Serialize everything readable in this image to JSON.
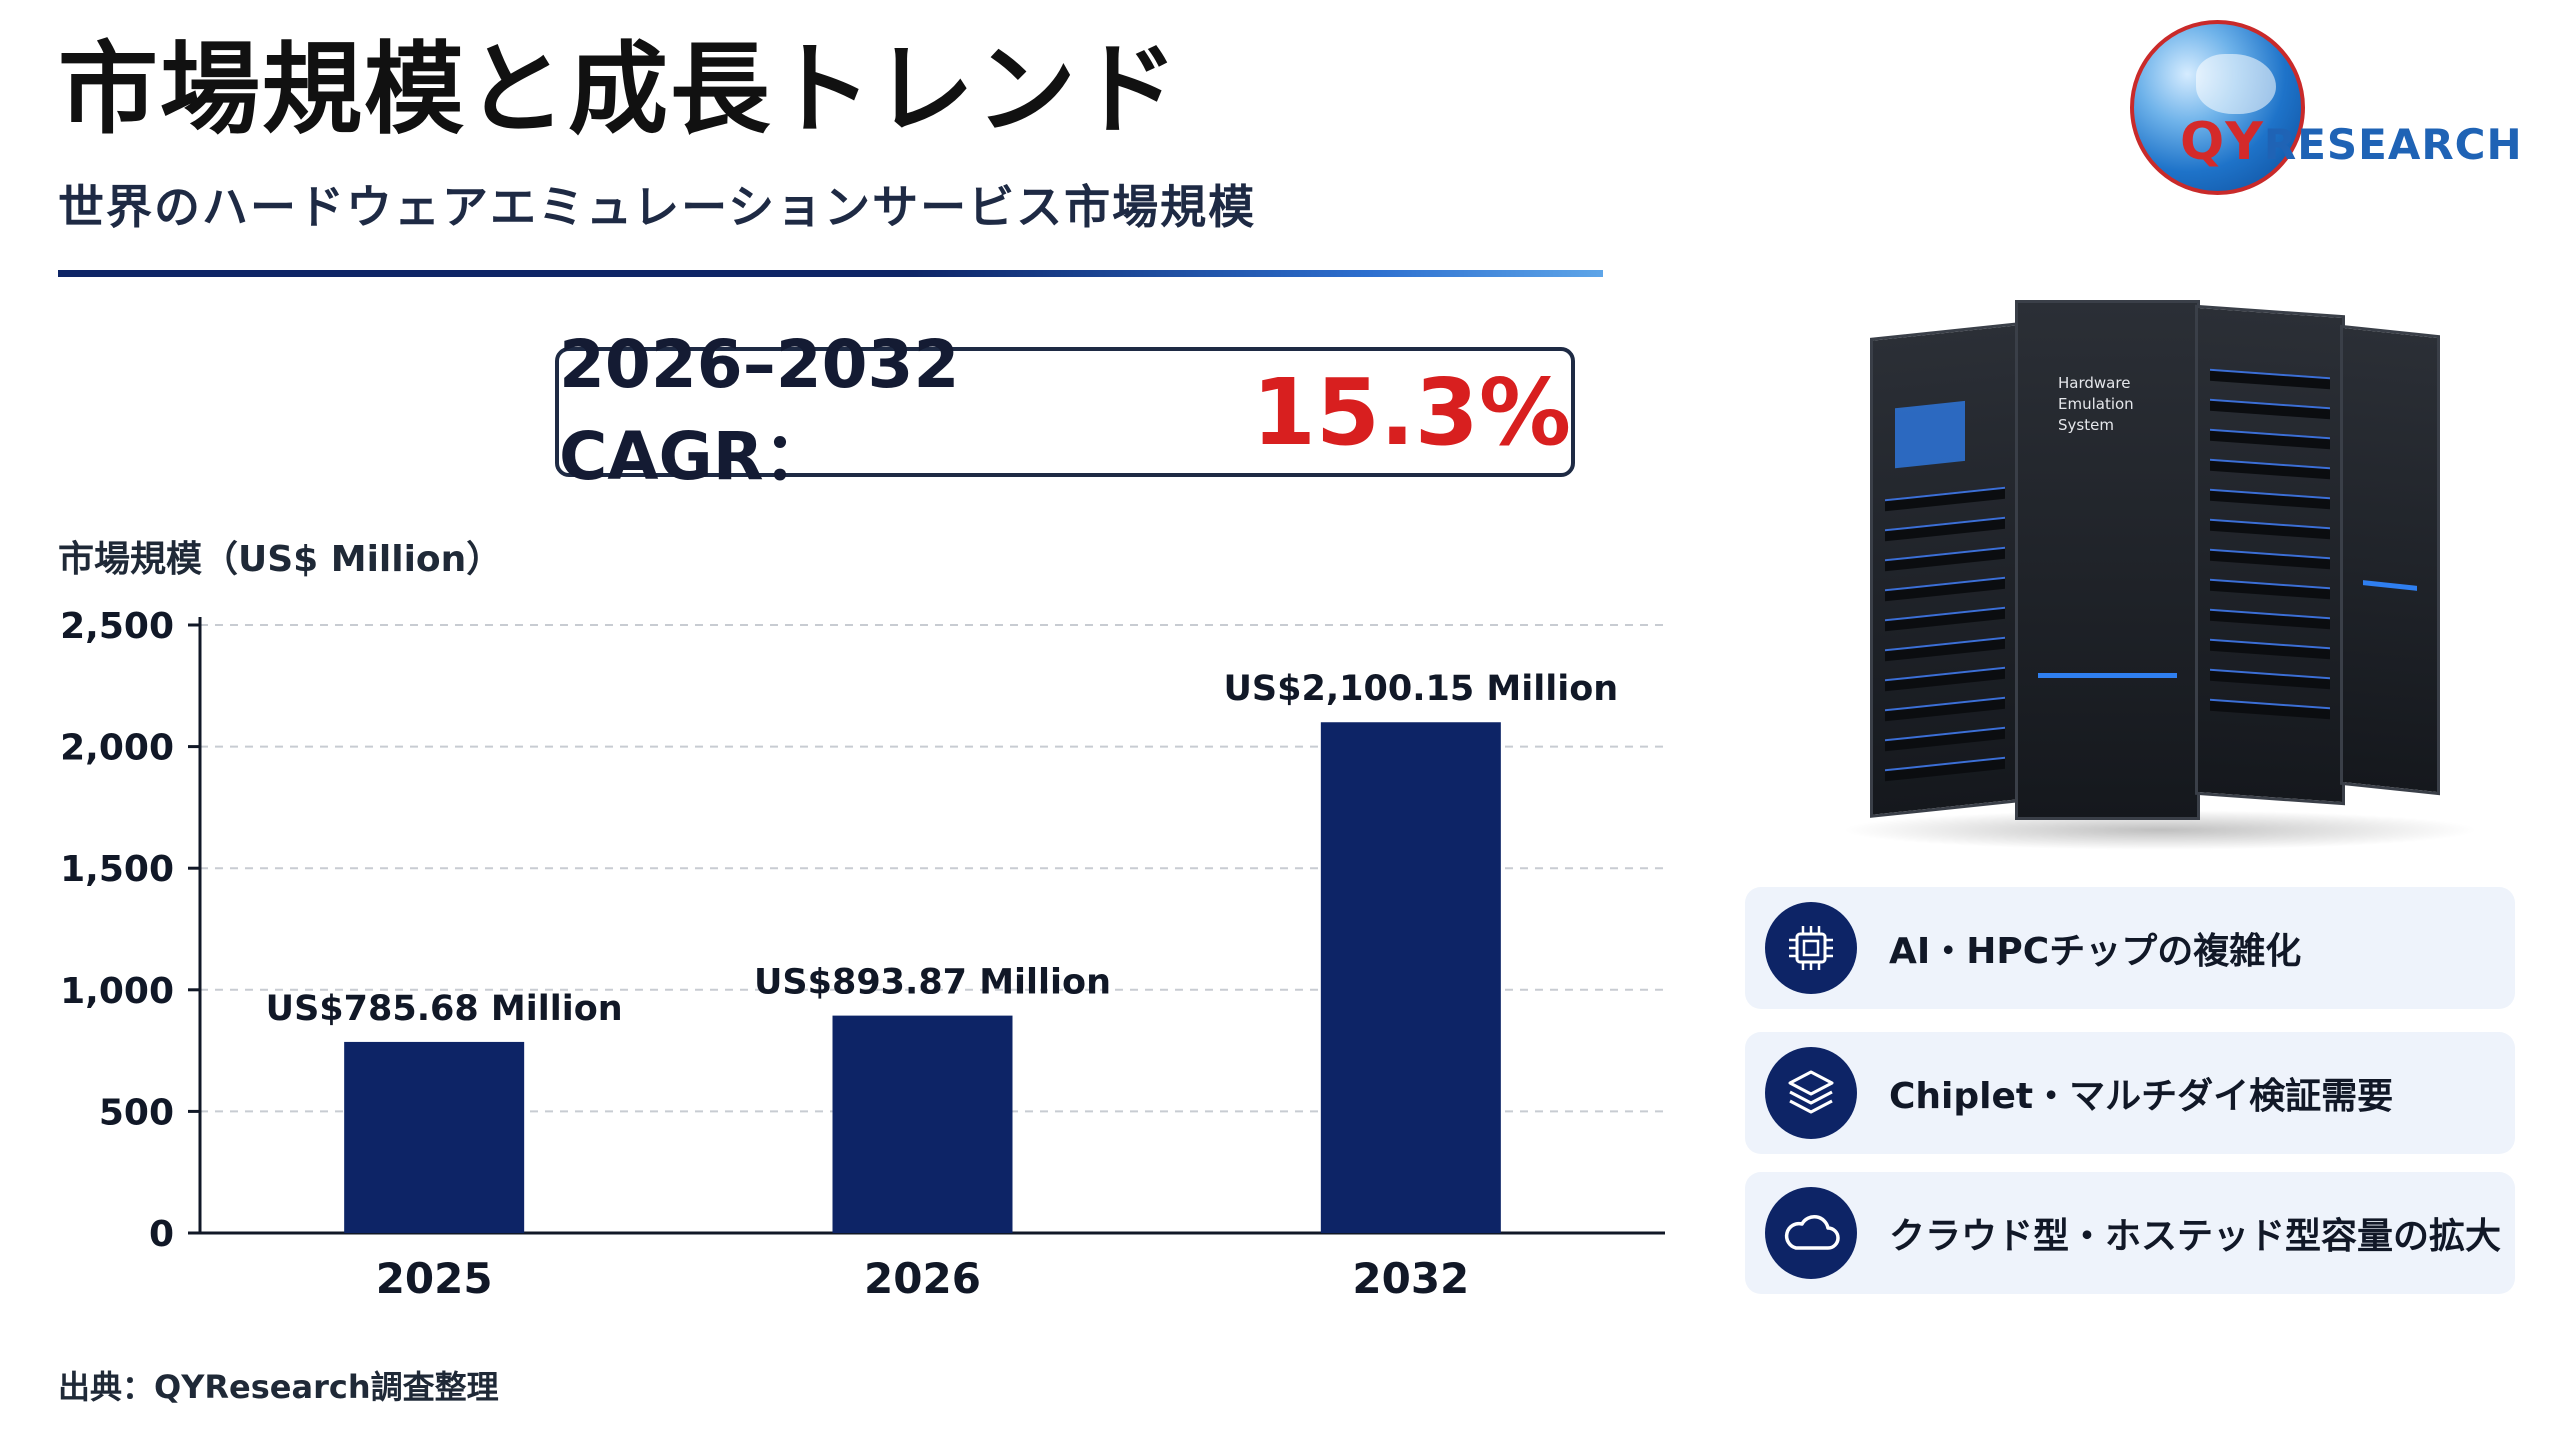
{
  "header": {
    "title": "市場規模と成長トレンド",
    "subtitle": "世界のハードウェアエミュレーションサービス市場規模"
  },
  "logo": {
    "q": "QY",
    "rest": "RESEARCH"
  },
  "cagr": {
    "label": "2026–2032 CAGR：",
    "value": "15.3%"
  },
  "unit_label": "市場規模（US$ Million）",
  "source": "出典：QYResearch調査整理",
  "server_image": {
    "label_lines": [
      "Hardware",
      "Emulation",
      "System"
    ]
  },
  "features": [
    {
      "icon": "chip-icon",
      "text": "AI・HPCチップの複雑化"
    },
    {
      "icon": "layers-icon",
      "text": "Chiplet・マルチダイ検証需要"
    },
    {
      "icon": "cloud-icon",
      "text": "クラウド型・ホステッド型容量の拡大"
    }
  ],
  "colors": {
    "bar": "#0d2466",
    "accent_red": "#d81f1f",
    "grid": "#c8ccd2"
  },
  "chart_data": {
    "type": "bar",
    "categories": [
      "2025",
      "2026",
      "2032"
    ],
    "values": [
      785.68,
      893.87,
      2100.15
    ],
    "data_labels": [
      "US$785.68 Million",
      "US$893.87 Million",
      "US$2,100.15 Million"
    ],
    "ylim": [
      0,
      2500
    ],
    "yticks": [
      0,
      500,
      1000,
      1500,
      2000,
      2500
    ],
    "ytick_labels": [
      "0",
      "500",
      "1,000",
      "1,500",
      "2,000",
      "2,500"
    ],
    "ylabel": "市場規模（US$ Million）",
    "grid": true
  }
}
